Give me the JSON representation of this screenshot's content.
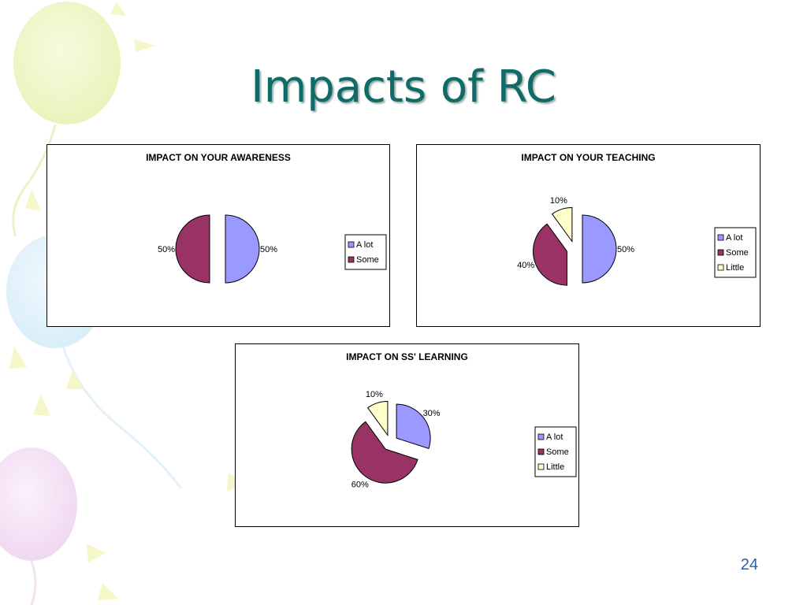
{
  "slide": {
    "title": "Impacts of RC",
    "page_number": "24"
  },
  "colors": {
    "title": "#0f6b68",
    "a_lot": "#9999ff",
    "some": "#993366",
    "little": "#ffffcc",
    "page_number": "#2f5f9f"
  },
  "chart_data": [
    {
      "type": "pie",
      "title": "IMPACT ON YOUR AWARENESS",
      "categories": [
        "A lot",
        "Some"
      ],
      "values": [
        50,
        50
      ],
      "labels": [
        "50%",
        "50%"
      ],
      "colors": [
        "#9999ff",
        "#993366"
      ],
      "exploded": true,
      "legend": "right"
    },
    {
      "type": "pie",
      "title": "IMPACT ON YOUR TEACHING",
      "categories": [
        "A lot",
        "Some",
        "Little"
      ],
      "values": [
        50,
        40,
        10
      ],
      "labels": [
        "50%",
        "40%",
        "10%"
      ],
      "colors": [
        "#9999ff",
        "#993366",
        "#ffffcc"
      ],
      "exploded": true,
      "legend": "right"
    },
    {
      "type": "pie",
      "title": "IMPACT ON SS' LEARNING",
      "categories": [
        "A lot",
        "Some",
        "Little"
      ],
      "values": [
        30,
        60,
        10
      ],
      "labels": [
        "30%",
        "60%",
        "10%"
      ],
      "colors": [
        "#9999ff",
        "#993366",
        "#ffffcc"
      ],
      "exploded": true,
      "legend": "right"
    }
  ]
}
